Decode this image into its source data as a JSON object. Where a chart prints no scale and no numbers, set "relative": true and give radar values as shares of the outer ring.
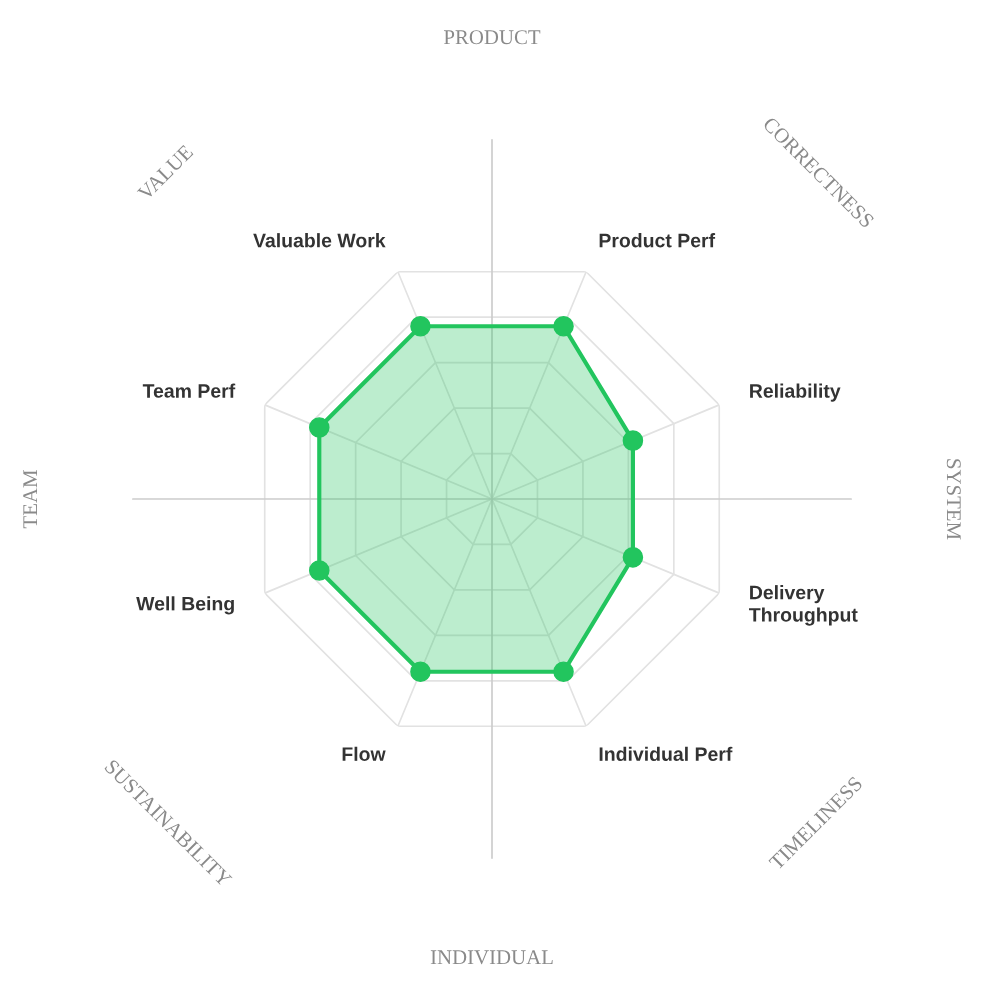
{
  "chart_data": {
    "type": "radar",
    "relative": true,
    "categories": [
      "Product Perf",
      "Reliability",
      "Delivery\nThroughput",
      "Individual Perf",
      "Flow",
      "Well Being",
      "Team Perf",
      "Valuable Work"
    ],
    "series": [
      {
        "color": "#22c55e",
        "values": [
          0.76,
          0.62,
          0.62,
          0.76,
          0.76,
          0.76,
          0.76,
          0.76
        ]
      }
    ],
    "annotations": [
      "PRODUCT",
      "CORRECTNESS",
      "SYSTEM",
      "TIMELINESS",
      "INDIVIDUAL",
      "SUSTAINABILITY",
      "TEAM",
      "VALUE"
    ],
    "marker": "circle",
    "line_style": "solid",
    "grid": true,
    "legend": false
  }
}
